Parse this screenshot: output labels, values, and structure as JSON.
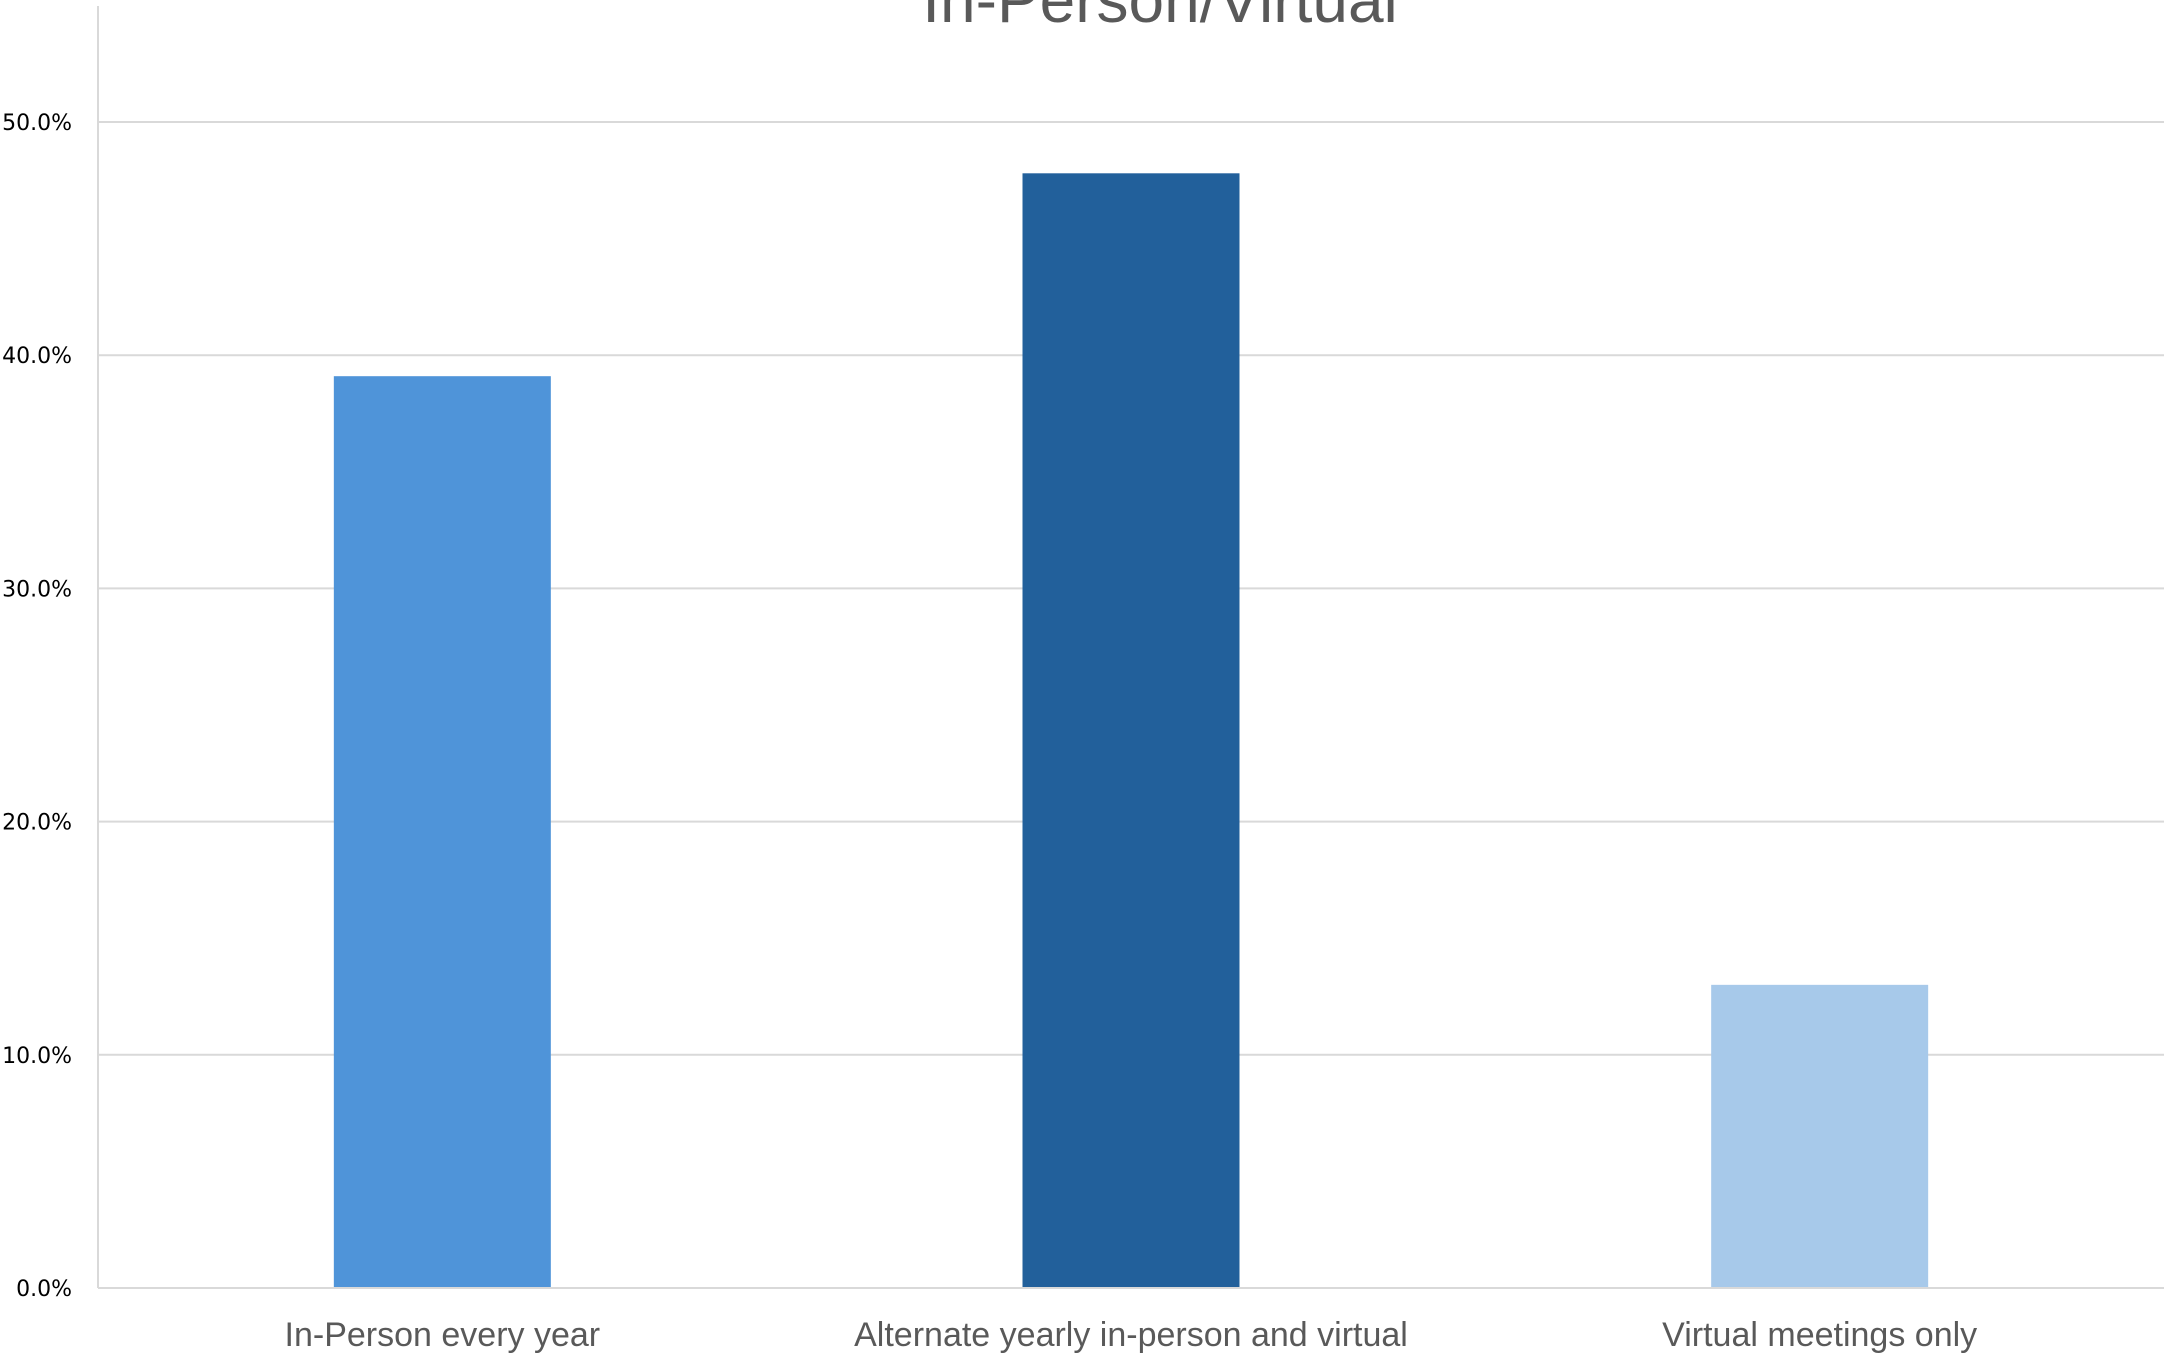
{
  "chart_data": {
    "type": "bar",
    "title": "In-Person/Virtual",
    "xlabel": "",
    "ylabel": "",
    "categories": [
      "In-Person every year",
      "Alternate yearly in-person and virtual",
      "Virtual meetings only"
    ],
    "values": [
      39.1,
      47.8,
      13.0
    ],
    "colors": [
      "#4f94d9",
      "#22609b",
      "#a7c9ea"
    ],
    "value_format": "percent",
    "ylim": [
      0,
      50
    ],
    "yticks": [
      0,
      10,
      20,
      30,
      40,
      50
    ],
    "ytick_labels": [
      "0.0%",
      "10.0%",
      "20.0%",
      "30.0%",
      "40.0%",
      "50.0%"
    ],
    "grid": true,
    "legend": "none"
  }
}
